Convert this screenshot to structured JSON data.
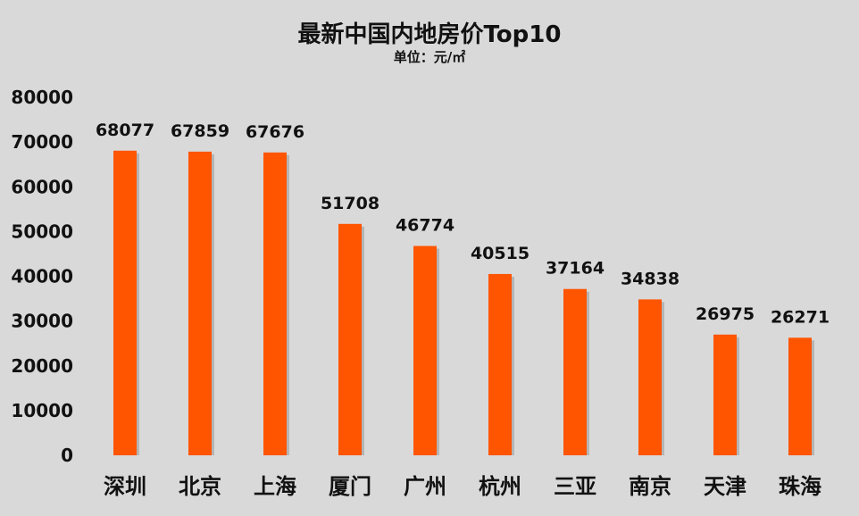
{
  "chart_data": {
    "type": "bar",
    "title": "最新中国内地房价Top10",
    "subtitle": "单位：元/㎡",
    "categories": [
      "深圳",
      "北京",
      "上海",
      "厦门",
      "广州",
      "杭州",
      "三亚",
      "南京",
      "天津",
      "珠海"
    ],
    "values": [
      68077,
      67859,
      67676,
      51708,
      46774,
      40515,
      37164,
      34838,
      26975,
      26271
    ],
    "data_labels": [
      "68077",
      "67859",
      "67676",
      "51708",
      "46774",
      "40515",
      "37164",
      "34838",
      "26975",
      "26271"
    ],
    "ylim": [
      0,
      80000
    ],
    "yticks": [
      0,
      10000,
      20000,
      30000,
      40000,
      50000,
      60000,
      70000,
      80000
    ],
    "ytick_labels": [
      "0",
      "10000",
      "20000",
      "30000",
      "40000",
      "50000",
      "60000",
      "70000",
      "80000"
    ],
    "grid": false,
    "bar_color": "#ff5500",
    "bar_shadow_color": "#a8a8a8",
    "background_color": "#d9d9d9"
  }
}
